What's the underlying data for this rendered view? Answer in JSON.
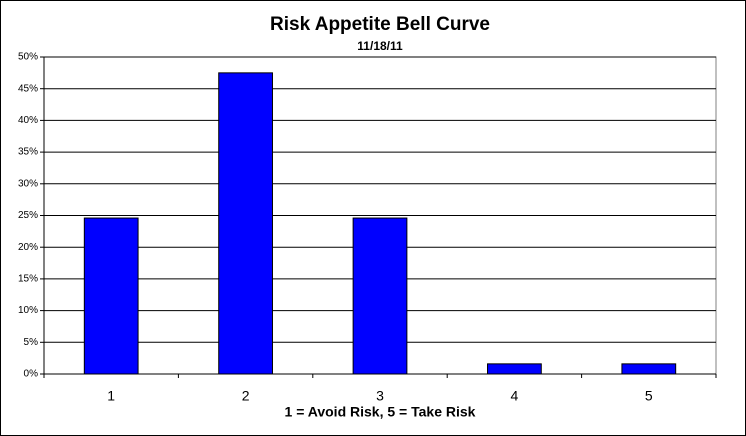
{
  "chart_data": {
    "type": "bar",
    "title": "Risk Appetite Bell Curve",
    "subtitle": "11/18/11",
    "x_label": "1 = Avoid Risk, 5 = Take Risk",
    "categories": [
      "1",
      "2",
      "3",
      "4",
      "5"
    ],
    "values": [
      24.6,
      47.5,
      24.6,
      1.6,
      1.6
    ],
    "color": "#0000ff",
    "ylim": [
      0,
      50
    ],
    "yticks": [
      {
        "value": 0,
        "label": "0%"
      },
      {
        "value": 5,
        "label": "5%"
      },
      {
        "value": 10,
        "label": "10%"
      },
      {
        "value": 15,
        "label": "15%"
      },
      {
        "value": 20,
        "label": "20%"
      },
      {
        "value": 25,
        "label": "25%"
      },
      {
        "value": 30,
        "label": "30%"
      },
      {
        "value": 35,
        "label": "35%"
      },
      {
        "value": 40,
        "label": "40%"
      },
      {
        "value": 45,
        "label": "45%"
      },
      {
        "value": 50,
        "label": "50%"
      }
    ],
    "grid": true
  }
}
